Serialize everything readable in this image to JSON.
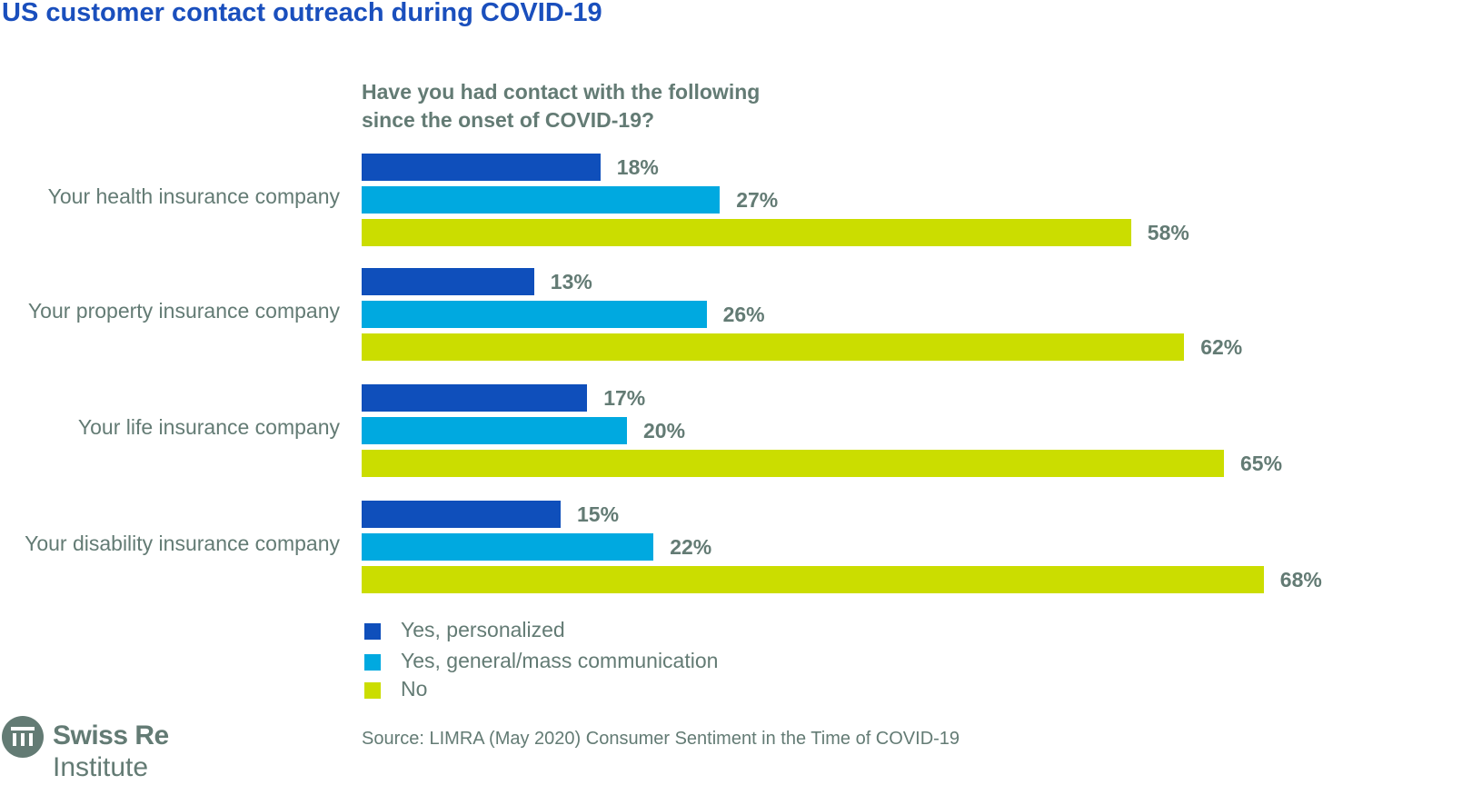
{
  "chart_data": {
    "type": "bar",
    "orientation": "horizontal",
    "title": "US customer contact outreach during COVID-19",
    "subtitle": "Have you had contact with the following since the onset of COVID-19?",
    "subtitle_lines": [
      "Have you had contact with the following",
      "since the onset of COVID-19?"
    ],
    "categories": [
      "Your health insurance company",
      "Your property insurance company",
      "Your life insurance company",
      "Your disability insurance company"
    ],
    "series": [
      {
        "name": "Yes, personalized",
        "color": "#0f4fbb",
        "values": [
          18,
          13,
          17,
          15
        ],
        "labels": [
          "18%",
          "13%",
          "17%",
          "15%"
        ]
      },
      {
        "name": "Yes, general/mass communication",
        "color": "#00a9e0",
        "values": [
          27,
          26,
          20,
          22
        ],
        "labels": [
          "27%",
          "26%",
          "20%",
          "22%"
        ]
      },
      {
        "name": "No",
        "color": "#cbdd00",
        "values": [
          58,
          62,
          65,
          68
        ],
        "labels": [
          "58%",
          "62%",
          "65%",
          "68%"
        ]
      }
    ],
    "unit": "%",
    "xlim": [
      0,
      100
    ],
    "grid": false,
    "legend": "bottom-left",
    "source": "Source: LIMRA (May 2020) Consumer Sentiment in the Time of COVID-19"
  },
  "logo": {
    "name": "Swiss Re",
    "sub": "Institute",
    "color": "#637b74"
  }
}
